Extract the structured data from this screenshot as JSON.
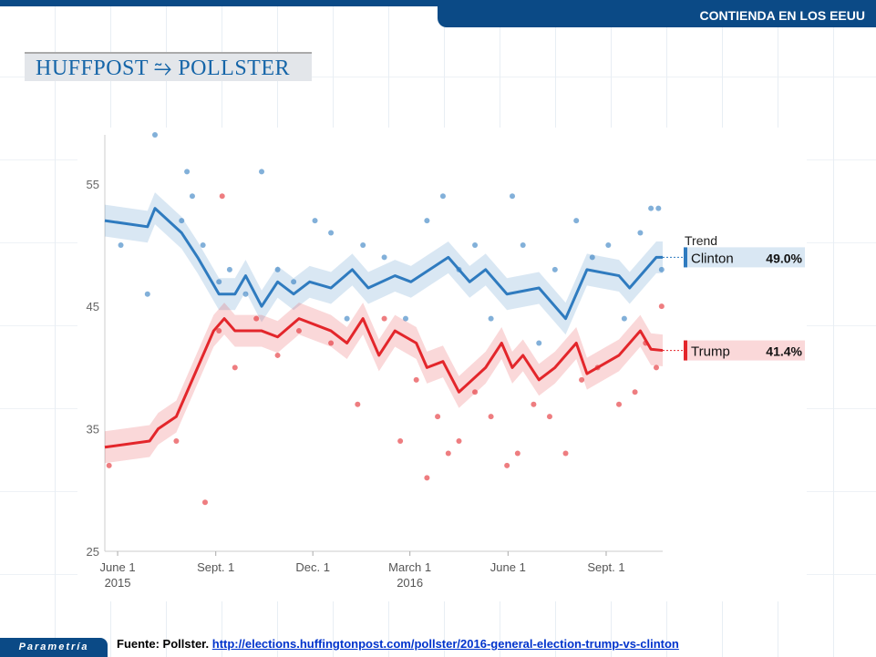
{
  "header": {
    "banner": "CONTIENDA EN LOS EEUU",
    "logo": "HUFFPOST ⥲ POLLSTER"
  },
  "footer": {
    "brand": "Parametría",
    "source_label": "Fuente: Pollster.",
    "source_link": "http://elections.huffingtonpost.com/pollster/2016-general-election-trump-vs-clinton"
  },
  "colors": {
    "clinton": "#2f7bbf",
    "trump": "#e3262b",
    "brand": "#0b4a86"
  },
  "chart_data": {
    "type": "line",
    "x_unit": "days since June 1 2015",
    "xlim": [
      -12,
      511
    ],
    "ylim": [
      25,
      59
    ],
    "yticks": [
      25,
      35,
      45,
      55
    ],
    "xticks": [
      {
        "day": 0,
        "label": "June 1",
        "sub": "2015"
      },
      {
        "day": 92,
        "label": "Sept. 1",
        "sub": ""
      },
      {
        "day": 183,
        "label": "Dec. 1",
        "sub": ""
      },
      {
        "day": 274,
        "label": "March 1",
        "sub": "2016"
      },
      {
        "day": 366,
        "label": "June 1",
        "sub": ""
      },
      {
        "day": 458,
        "label": "Sept. 1",
        "sub": ""
      }
    ],
    "legend_title": "Trend",
    "series": [
      {
        "name": "Clinton",
        "label": "49.0%",
        "final": 49.0,
        "trend": [
          [
            -12,
            52
          ],
          [
            28,
            51.5
          ],
          [
            35,
            53
          ],
          [
            60,
            51
          ],
          [
            75,
            49
          ],
          [
            95,
            46
          ],
          [
            110,
            46
          ],
          [
            120,
            47.5
          ],
          [
            135,
            45
          ],
          [
            150,
            47
          ],
          [
            165,
            46
          ],
          [
            180,
            47
          ],
          [
            200,
            46.5
          ],
          [
            220,
            48
          ],
          [
            235,
            46.5
          ],
          [
            260,
            47.5
          ],
          [
            275,
            47
          ],
          [
            310,
            49
          ],
          [
            330,
            47
          ],
          [
            345,
            48
          ],
          [
            365,
            46
          ],
          [
            395,
            46.5
          ],
          [
            420,
            44
          ],
          [
            440,
            48
          ],
          [
            470,
            47.5
          ],
          [
            480,
            46.5
          ],
          [
            505,
            49
          ],
          [
            511,
            49
          ]
        ],
        "polls": [
          [
            3,
            50
          ],
          [
            28,
            46
          ],
          [
            35,
            59
          ],
          [
            60,
            52
          ],
          [
            65,
            56
          ],
          [
            70,
            54
          ],
          [
            80,
            50
          ],
          [
            95,
            47
          ],
          [
            105,
            48
          ],
          [
            120,
            46
          ],
          [
            135,
            56
          ],
          [
            150,
            48
          ],
          [
            165,
            47
          ],
          [
            185,
            52
          ],
          [
            200,
            51
          ],
          [
            215,
            44
          ],
          [
            230,
            50
          ],
          [
            250,
            49
          ],
          [
            270,
            44
          ],
          [
            290,
            52
          ],
          [
            305,
            54
          ],
          [
            320,
            48
          ],
          [
            335,
            50
          ],
          [
            350,
            44
          ],
          [
            370,
            54
          ],
          [
            380,
            50
          ],
          [
            395,
            42
          ],
          [
            410,
            48
          ],
          [
            430,
            52
          ],
          [
            445,
            49
          ],
          [
            460,
            50
          ],
          [
            475,
            44
          ],
          [
            490,
            51
          ],
          [
            500,
            53
          ],
          [
            507,
            53
          ],
          [
            510,
            48
          ]
        ]
      },
      {
        "name": "Trump",
        "label": "41.4%",
        "final": 41.4,
        "trend": [
          [
            -12,
            33.5
          ],
          [
            30,
            34
          ],
          [
            38,
            35
          ],
          [
            55,
            36
          ],
          [
            75,
            40
          ],
          [
            90,
            43
          ],
          [
            100,
            44
          ],
          [
            110,
            43
          ],
          [
            135,
            43
          ],
          [
            150,
            42.5
          ],
          [
            170,
            44
          ],
          [
            200,
            43
          ],
          [
            215,
            42
          ],
          [
            230,
            44
          ],
          [
            245,
            41
          ],
          [
            260,
            43
          ],
          [
            280,
            42
          ],
          [
            290,
            40
          ],
          [
            305,
            40.5
          ],
          [
            320,
            38
          ],
          [
            345,
            40
          ],
          [
            360,
            42
          ],
          [
            370,
            40
          ],
          [
            380,
            41
          ],
          [
            395,
            39
          ],
          [
            410,
            40
          ],
          [
            430,
            42
          ],
          [
            440,
            39.5
          ],
          [
            470,
            41
          ],
          [
            490,
            43
          ],
          [
            500,
            41.5
          ],
          [
            511,
            41.4
          ]
        ],
        "polls": [
          [
            -8,
            32
          ],
          [
            55,
            34
          ],
          [
            82,
            29
          ],
          [
            95,
            43
          ],
          [
            98,
            54
          ],
          [
            110,
            40
          ],
          [
            130,
            44
          ],
          [
            150,
            41
          ],
          [
            170,
            43
          ],
          [
            200,
            42
          ],
          [
            225,
            37
          ],
          [
            250,
            44
          ],
          [
            265,
            34
          ],
          [
            280,
            39
          ],
          [
            290,
            31
          ],
          [
            300,
            36
          ],
          [
            310,
            33
          ],
          [
            320,
            34
          ],
          [
            335,
            38
          ],
          [
            350,
            36
          ],
          [
            365,
            32
          ],
          [
            375,
            33
          ],
          [
            390,
            37
          ],
          [
            405,
            36
          ],
          [
            420,
            33
          ],
          [
            435,
            39
          ],
          [
            450,
            40
          ],
          [
            470,
            37
          ],
          [
            485,
            38
          ],
          [
            495,
            42
          ],
          [
            505,
            40
          ],
          [
            510,
            45
          ]
        ]
      }
    ]
  }
}
